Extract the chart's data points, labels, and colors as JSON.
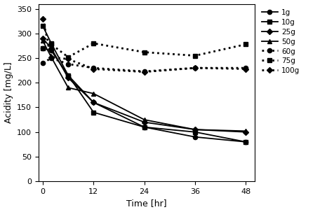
{
  "x": [
    0,
    2,
    6,
    12,
    24,
    36,
    48
  ],
  "series": {
    "1g": [
      270,
      265,
      215,
      160,
      110,
      90,
      80
    ],
    "10g": [
      315,
      280,
      215,
      140,
      110,
      100,
      80
    ],
    "25g": [
      290,
      270,
      210,
      160,
      120,
      105,
      100
    ],
    "50g": [
      285,
      252,
      190,
      178,
      125,
      105,
      102
    ],
    "60g": [
      240,
      250,
      238,
      230,
      223,
      230,
      230
    ],
    "75g": [
      270,
      278,
      252,
      280,
      262,
      255,
      278
    ],
    "100g": [
      330,
      252,
      248,
      228,
      222,
      230,
      228
    ]
  },
  "solid_series": [
    "1g",
    "10g",
    "25g",
    "50g"
  ],
  "dotted_series": [
    "60g",
    "75g",
    "100g"
  ],
  "markers": {
    "1g": "o",
    "10g": "s",
    "25g": "D",
    "50g": "^",
    "60g": "o",
    "75g": "s",
    "100g": "D"
  },
  "xlabel": "Time [hr]",
  "ylabel": "Acidity [mg/L]",
  "xticks": [
    0,
    12,
    24,
    36,
    48
  ],
  "yticks": [
    0,
    50,
    100,
    150,
    200,
    250,
    300,
    350
  ],
  "ylim": [
    0,
    360
  ],
  "xlim": [
    -1,
    50
  ],
  "color": "#000000",
  "legend_fontsize": 7.5,
  "axis_fontsize": 9,
  "tick_fontsize": 8,
  "markersize": 4.5,
  "linewidth": 1.3,
  "dotlinewidth": 2.0
}
